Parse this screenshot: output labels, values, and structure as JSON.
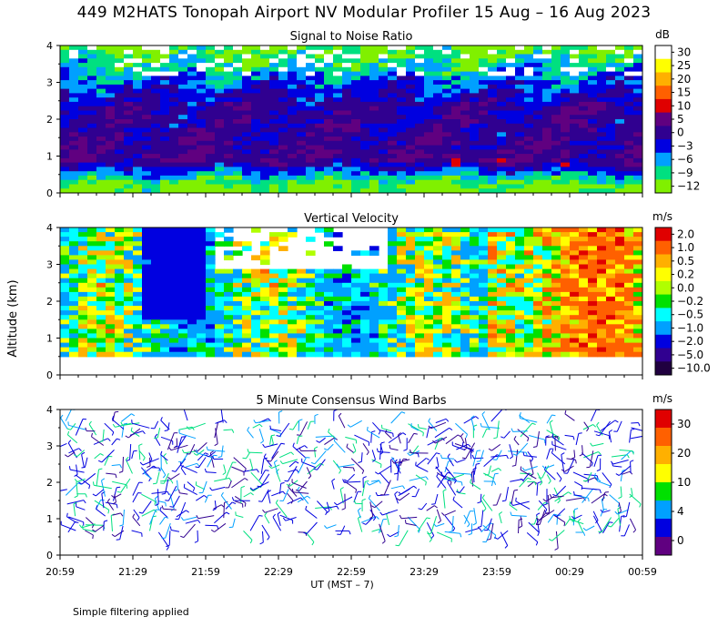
{
  "title": "449 M2HATS Tonopah Airport NV Modular Profiler 15 Aug – 16 Aug 2023",
  "footnote": "Simple filtering applied",
  "y_axis_label": "Altitude (km)",
  "x_axis_label": "UT  (MST – 7)",
  "x_ticks": [
    "20:59",
    "21:29",
    "21:59",
    "22:29",
    "22:59",
    "23:29",
    "23:59",
    "00:29",
    "00:59"
  ],
  "y_ticks": [
    "0",
    "1",
    "2",
    "3",
    "4"
  ],
  "chart_data": [
    {
      "type": "heatmap",
      "title": "Signal to Noise Ratio",
      "ylabel": "Altitude (km)",
      "ylim": [
        0,
        4
      ],
      "colorbar": {
        "unit": "dB",
        "labels": [
          "30",
          "25",
          "20",
          "15",
          "10",
          "5",
          "0",
          "−3",
          "−6",
          "−9",
          "−12"
        ],
        "colors": [
          "#ffffff",
          "#ffff00",
          "#ffb000",
          "#ff6000",
          "#e00000",
          "#600080",
          "#300090",
          "#0000e0",
          "#00a0ff",
          "#00e080",
          "#80f000"
        ]
      },
      "profile_km": [
        0.2,
        0.5,
        0.9,
        1.3,
        1.8,
        2.3,
        2.8,
        3.2,
        3.6,
        4.0
      ],
      "profile_db": [
        -12,
        -6,
        2,
        1,
        0,
        0,
        -3,
        -6,
        -9,
        -12
      ]
    },
    {
      "type": "heatmap",
      "title": "Vertical Velocity",
      "ylabel": "Altitude (km)",
      "ylim": [
        0,
        4
      ],
      "colorbar": {
        "unit": "m/s",
        "labels": [
          "2.0",
          "1.0",
          "0.5",
          "0.2",
          "0.0",
          "−0.2",
          "−0.5",
          "−1.0",
          "−2.0",
          "−5.0",
          "−10.0"
        ],
        "colors": [
          "#e00000",
          "#ff6000",
          "#ffb000",
          "#ffff00",
          "#b0ff00",
          "#00e000",
          "#00ffff",
          "#00a0ff",
          "#0000e0",
          "#300090",
          "#200040"
        ]
      },
      "left_half_mean_ms": -0.5,
      "right_half_mean_ms": 0.5
    },
    {
      "type": "scatter",
      "title": "5 Minute Consensus Wind Barbs",
      "ylabel": "Altitude (km)",
      "ylim": [
        0,
        4
      ],
      "colorbar": {
        "unit": "m/s",
        "labels": [
          "30",
          "20",
          "10",
          "4",
          "0"
        ],
        "colors": [
          "#e00000",
          "#ff6000",
          "#ffb000",
          "#ffff00",
          "#00e000",
          "#00a0ff",
          "#0000e0",
          "#600080"
        ]
      },
      "typical_speed_ms": 4,
      "max_speed_ms": 15
    }
  ]
}
